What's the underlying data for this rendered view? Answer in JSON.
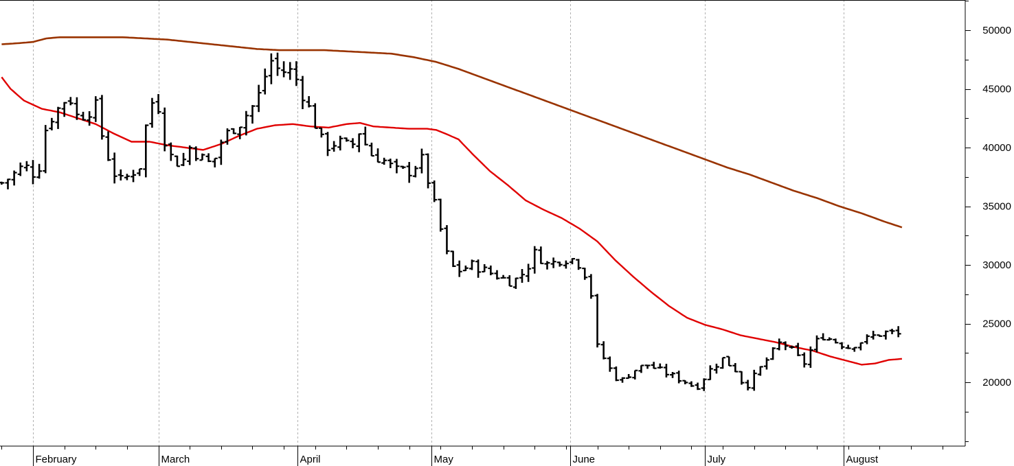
{
  "chart_data": {
    "type": "ohlc",
    "title": "",
    "xlabel": "",
    "ylabel": "",
    "ylim": [
      15000,
      52500
    ],
    "grid": "vertical-dotted",
    "colors": {
      "price_bars": "#000000",
      "ma_short": "#e00000",
      "ma_long": "#993300",
      "grid": "#b0b0b0",
      "axis": "#000000",
      "background": "#ffffff"
    },
    "x_range_days": [
      0,
      200
    ],
    "month_labels": [
      {
        "label": "February",
        "day": 0
      },
      {
        "label": "March",
        "day": 28
      },
      {
        "label": "April",
        "day": 59
      },
      {
        "label": "May",
        "day": 89
      },
      {
        "label": "June",
        "day": 120
      },
      {
        "label": "July",
        "day": 150
      },
      {
        "label": "August",
        "day": 181
      }
    ],
    "y_ticks": [
      "20000",
      "25000",
      "30000",
      "35000",
      "40000",
      "45000",
      "50000"
    ],
    "y_tick_values": [
      20000,
      25000,
      30000,
      35000,
      40000,
      45000,
      50000
    ],
    "price_key_points": [
      [
        -7,
        37000
      ],
      [
        -5,
        37500
      ],
      [
        -2,
        38500
      ],
      [
        1,
        37500
      ],
      [
        3,
        42000
      ],
      [
        6,
        43500
      ],
      [
        8,
        44500
      ],
      [
        10,
        42500
      ],
      [
        14,
        43500
      ],
      [
        16,
        40000
      ],
      [
        19,
        37000
      ],
      [
        21,
        37500
      ],
      [
        24,
        38500
      ],
      [
        26,
        44000
      ],
      [
        28,
        43500
      ],
      [
        30,
        39500
      ],
      [
        33,
        38500
      ],
      [
        35,
        40000
      ],
      [
        38,
        39000
      ],
      [
        40,
        38500
      ],
      [
        42,
        40500
      ],
      [
        44,
        41500
      ],
      [
        46,
        42000
      ],
      [
        50,
        44000
      ],
      [
        53,
        47500
      ],
      [
        55,
        46500
      ],
      [
        58,
        46500
      ],
      [
        62,
        43000
      ],
      [
        65,
        40000
      ],
      [
        68,
        40500
      ],
      [
        71,
        40000
      ],
      [
        73,
        41500
      ],
      [
        75,
        39500
      ],
      [
        78,
        39000
      ],
      [
        81,
        38000
      ],
      [
        84,
        38000
      ],
      [
        87,
        39000
      ],
      [
        89,
        36000
      ],
      [
        91,
        33000
      ],
      [
        93,
        30000
      ],
      [
        95,
        29500
      ],
      [
        98,
        30000
      ],
      [
        101,
        29500
      ],
      [
        104,
        29000
      ],
      [
        107,
        28500
      ],
      [
        110,
        29500
      ],
      [
        112,
        31000
      ],
      [
        115,
        30000
      ],
      [
        118,
        30500
      ],
      [
        121,
        30500
      ],
      [
        123,
        29500
      ],
      [
        125,
        27000
      ],
      [
        126,
        23000
      ],
      [
        129,
        21000
      ],
      [
        131,
        20000
      ],
      [
        134,
        21000
      ],
      [
        137,
        21500
      ],
      [
        140,
        21000
      ],
      [
        143,
        20500
      ],
      [
        146,
        20000
      ],
      [
        148,
        19500
      ],
      [
        151,
        21000
      ],
      [
        154,
        22000
      ],
      [
        157,
        21000
      ],
      [
        159,
        19500
      ],
      [
        162,
        21000
      ],
      [
        165,
        22500
      ],
      [
        167,
        23500
      ],
      [
        170,
        22500
      ],
      [
        172,
        21500
      ],
      [
        174,
        23000
      ],
      [
        176,
        24000
      ],
      [
        179,
        23500
      ],
      [
        182,
        23000
      ],
      [
        185,
        23500
      ],
      [
        188,
        24000
      ],
      [
        191,
        24300
      ],
      [
        194,
        24000
      ]
    ],
    "series": [
      {
        "name": "",
        "key_points": [
          [
            -7,
            46000
          ],
          [
            -5,
            45000
          ],
          [
            -2,
            44000
          ],
          [
            2,
            43300
          ],
          [
            6,
            43000
          ],
          [
            10,
            42500
          ],
          [
            14,
            42000
          ],
          [
            18,
            41200
          ],
          [
            22,
            40500
          ],
          [
            26,
            40500
          ],
          [
            30,
            40200
          ],
          [
            34,
            40000
          ],
          [
            38,
            39800
          ],
          [
            42,
            40300
          ],
          [
            46,
            41000
          ],
          [
            50,
            41600
          ],
          [
            54,
            41900
          ],
          [
            58,
            42000
          ],
          [
            62,
            41800
          ],
          [
            66,
            41700
          ],
          [
            70,
            42000
          ],
          [
            73,
            42100
          ],
          [
            76,
            41800
          ],
          [
            80,
            41700
          ],
          [
            84,
            41600
          ],
          [
            88,
            41600
          ],
          [
            90,
            41500
          ],
          [
            92,
            41200
          ],
          [
            95,
            40700
          ],
          [
            98,
            39500
          ],
          [
            102,
            38000
          ],
          [
            106,
            36800
          ],
          [
            110,
            35500
          ],
          [
            114,
            34700
          ],
          [
            118,
            34000
          ],
          [
            122,
            33100
          ],
          [
            126,
            32000
          ],
          [
            130,
            30400
          ],
          [
            134,
            29000
          ],
          [
            138,
            27700
          ],
          [
            142,
            26500
          ],
          [
            146,
            25500
          ],
          [
            150,
            24900
          ],
          [
            154,
            24500
          ],
          [
            158,
            24000
          ],
          [
            162,
            23700
          ],
          [
            166,
            23400
          ],
          [
            170,
            23000
          ],
          [
            174,
            22700
          ],
          [
            178,
            22200
          ],
          [
            182,
            21800
          ],
          [
            185,
            21500
          ],
          [
            188,
            21600
          ],
          [
            191,
            21900
          ],
          [
            194,
            22000
          ]
        ]
      },
      {
        "name": "",
        "key_points": [
          [
            -7,
            48800
          ],
          [
            -3,
            48900
          ],
          [
            0,
            49000
          ],
          [
            3,
            49300
          ],
          [
            6,
            49400
          ],
          [
            10,
            49400
          ],
          [
            15,
            49400
          ],
          [
            20,
            49400
          ],
          [
            25,
            49300
          ],
          [
            30,
            49200
          ],
          [
            35,
            49000
          ],
          [
            40,
            48800
          ],
          [
            45,
            48600
          ],
          [
            50,
            48400
          ],
          [
            55,
            48300
          ],
          [
            60,
            48300
          ],
          [
            65,
            48300
          ],
          [
            70,
            48200
          ],
          [
            75,
            48100
          ],
          [
            80,
            48000
          ],
          [
            85,
            47700
          ],
          [
            90,
            47300
          ],
          [
            95,
            46700
          ],
          [
            100,
            46000
          ],
          [
            105,
            45300
          ],
          [
            110,
            44600
          ],
          [
            115,
            43900
          ],
          [
            120,
            43200
          ],
          [
            125,
            42500
          ],
          [
            130,
            41800
          ],
          [
            135,
            41100
          ],
          [
            140,
            40400
          ],
          [
            145,
            39700
          ],
          [
            150,
            39000
          ],
          [
            155,
            38300
          ],
          [
            160,
            37700
          ],
          [
            165,
            37000
          ],
          [
            170,
            36300
          ],
          [
            175,
            35700
          ],
          [
            180,
            35000
          ],
          [
            185,
            34400
          ],
          [
            190,
            33700
          ],
          [
            194,
            33200
          ]
        ]
      }
    ]
  }
}
